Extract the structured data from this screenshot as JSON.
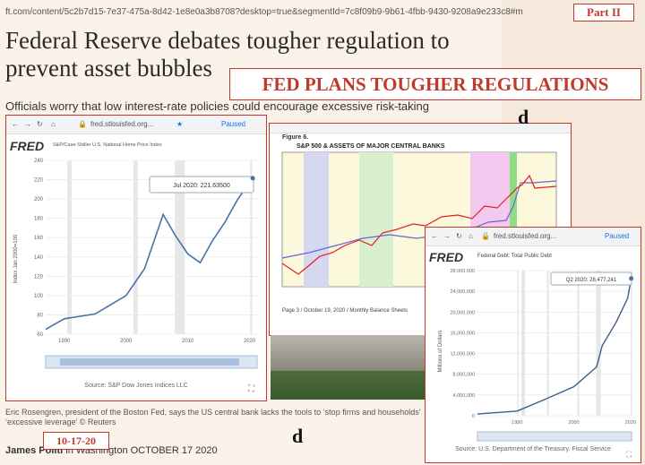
{
  "article": {
    "url": "ft.com/content/5c2b7d15-7e37-475a-8d42-1e8e0a3b8708?desktop=true&segmentId=7c8f09b9-9b61-4fbb-9430-9208a9e233c8#m",
    "headline": "Federal Reserve debates tougher regulation to prevent asset bubbles",
    "subhead": "Officials worry that low interest-rate policies could encourage excessive risk-taking",
    "caption": "Eric Rosengren, president of the Boston Fed, says the US central bank lacks the tools to ‘stop firms and households’ ‘excessive leverage’ © Reuters",
    "author": "James Politi",
    "byline_rest": " in Washington OCTOBER 17 2020"
  },
  "stamps": {
    "part": "Part II",
    "fed_plans": "FED PLANS TOUGHER REGULATIONS",
    "date": "10-17-20",
    "d_mark_1": "d",
    "d_mark_2": "d"
  },
  "window_home_prices": {
    "url": "fred.stlouisfed.org...",
    "paused": "Paused",
    "logo": "FRED",
    "series": "S&P/Case-Shiller U.S. National Home Price Index",
    "ylabel": "Index Jan 2000=100",
    "tooltip": "Jul 2020: 221.63500",
    "source": "Source: S&P Dow Jones Indices LLC",
    "chart_data": {
      "type": "line",
      "x": [
        1987,
        1990,
        1995,
        2000,
        2003,
        2006,
        2008,
        2010,
        2012,
        2014,
        2016,
        2018,
        2020.5
      ],
      "y": [
        65,
        76,
        81,
        100,
        128,
        184,
        162,
        143,
        134,
        157,
        176,
        199,
        221.6
      ],
      "xticks": [
        1990,
        2000,
        2010,
        2020
      ],
      "yticks": [
        60,
        80,
        100,
        120,
        140,
        160,
        180,
        200,
        220,
        240
      ],
      "xlim": [
        1987,
        2021.5
      ],
      "ylim": [
        60,
        240
      ]
    }
  },
  "window_balance": {
    "figure_label": "Figure 6.",
    "title": "S&P 500 & ASSETS OF MAJOR CENTRAL BANKS",
    "footer": "Page 3 / October 19, 2020 / Monthly Balance Sheets"
  },
  "window_debt": {
    "url": "fred.stlouisfed.org...",
    "paused": "Paused",
    "logo": "FRED",
    "series": "Federal Debt: Total Public Debt",
    "ylabel": "Millions of Dollars",
    "tooltip": "Q2 2020: 26,477,241",
    "source": "Source: U.S. Department of the Treasury. Fiscal Service",
    "chart_data": {
      "type": "line",
      "x": [
        1966,
        1980,
        1990,
        2000,
        2008,
        2010,
        2015,
        2019,
        2020.25
      ],
      "y": [
        320000,
        900000,
        3200000,
        5600000,
        9400000,
        13500000,
        18100000,
        22700000,
        26477241
      ],
      "xticks": [
        1980,
        2000,
        2020
      ],
      "yticks": [
        0,
        4000000,
        8000000,
        12000000,
        16000000,
        20000000,
        24000000,
        28000000
      ],
      "ytick_labels": [
        "0",
        "4,000,000",
        "8,000,000",
        "12,000,000",
        "16,000,000",
        "20,000,000",
        "24,000,000",
        "28,000,000"
      ],
      "xlim": [
        1966,
        2021
      ],
      "ylim": [
        0,
        28000000
      ]
    }
  }
}
